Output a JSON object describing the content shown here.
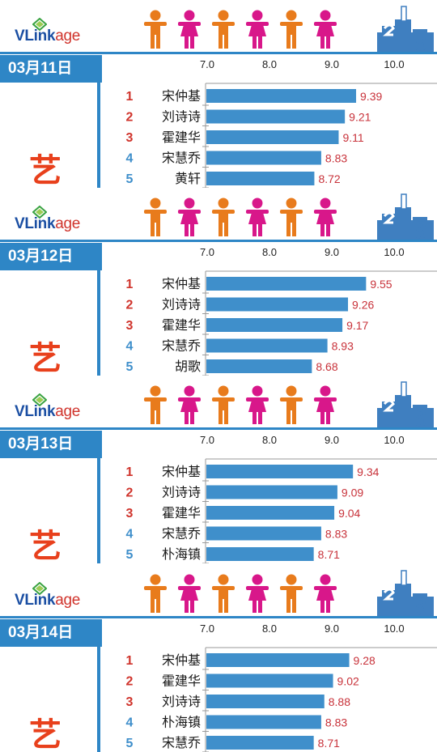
{
  "brand": {
    "logo_vl": "VLink",
    "logo_age": "age",
    "mark_char": "艺"
  },
  "colors": {
    "accent": "#2e86c6",
    "bar": "#3f8fcb",
    "rank_odd": "#d0342c",
    "rank_blue": "#3f8fcb",
    "value": "#c8323a",
    "male": "#e87b1c",
    "female": "#d8178a"
  },
  "icons": [
    "male-person-icon",
    "female-person-icon",
    "podium-icon",
    "vlinkage-logo-mark-icon"
  ],
  "chart_data": [
    {
      "type": "bar",
      "date": "03月11日",
      "xlim": [
        7.0,
        10.0
      ],
      "ticks": [
        "7.0",
        "8.0",
        "9.0",
        "10.0"
      ],
      "ranks": [
        "1",
        "2",
        "3",
        "4",
        "5"
      ],
      "categories": [
        "宋仲基",
        "刘诗诗",
        "霍建华",
        "宋慧乔",
        "黄轩"
      ],
      "values": [
        9.39,
        9.21,
        9.11,
        8.83,
        8.72
      ],
      "value_labels": [
        "9.39",
        "9.21",
        "9.11",
        "8.83",
        "8.72"
      ]
    },
    {
      "type": "bar",
      "date": "03月12日",
      "xlim": [
        7.0,
        10.0
      ],
      "ticks": [
        "7.0",
        "8.0",
        "9.0",
        "10.0"
      ],
      "ranks": [
        "1",
        "2",
        "3",
        "4",
        "5"
      ],
      "categories": [
        "宋仲基",
        "刘诗诗",
        "霍建华",
        "宋慧乔",
        "胡歌"
      ],
      "values": [
        9.55,
        9.26,
        9.17,
        8.93,
        8.68
      ],
      "value_labels": [
        "9.55",
        "9.26",
        "9.17",
        "8.93",
        "8.68"
      ]
    },
    {
      "type": "bar",
      "date": "03月13日",
      "xlim": [
        7.0,
        10.0
      ],
      "ticks": [
        "7.0",
        "8.0",
        "9.0",
        "10.0"
      ],
      "ranks": [
        "1",
        "2",
        "3",
        "4",
        "5"
      ],
      "categories": [
        "宋仲基",
        "刘诗诗",
        "霍建华",
        "宋慧乔",
        "朴海镇"
      ],
      "values": [
        9.34,
        9.09,
        9.04,
        8.83,
        8.71
      ],
      "value_labels": [
        "9.34",
        "9.09",
        "9.04",
        "8.83",
        "8.71"
      ]
    },
    {
      "type": "bar",
      "date": "03月14日",
      "xlim": [
        7.0,
        10.0
      ],
      "ticks": [
        "7.0",
        "8.0",
        "9.0",
        "10.0"
      ],
      "ranks": [
        "1",
        "2",
        "3",
        "4",
        "5"
      ],
      "categories": [
        "宋仲基",
        "霍建华",
        "刘诗诗",
        "朴海镇",
        "宋慧乔"
      ],
      "values": [
        9.28,
        9.02,
        8.88,
        8.83,
        8.71
      ],
      "value_labels": [
        "9.28",
        "9.02",
        "8.88",
        "8.83",
        "8.71"
      ]
    }
  ]
}
